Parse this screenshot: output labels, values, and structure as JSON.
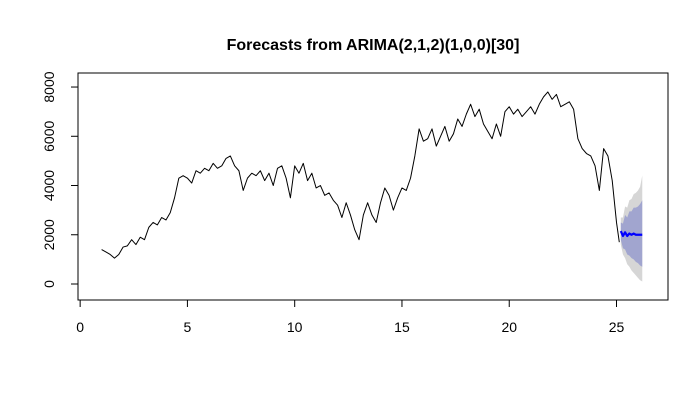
{
  "chart_data": {
    "type": "line",
    "title": "Forecasts from ARIMA(2,1,2)(1,0,0)[30]",
    "x": [
      1.0,
      1.2,
      1.4,
      1.6,
      1.8,
      2.0,
      2.2,
      2.4,
      2.6,
      2.8,
      3.0,
      3.2,
      3.4,
      3.6,
      3.8,
      4.0,
      4.2,
      4.4,
      4.6,
      4.8,
      5.0,
      5.2,
      5.4,
      5.6,
      5.8,
      6.0,
      6.2,
      6.4,
      6.6,
      6.8,
      7.0,
      7.2,
      7.4,
      7.6,
      7.8,
      8.0,
      8.2,
      8.4,
      8.6,
      8.8,
      9.0,
      9.2,
      9.4,
      9.6,
      9.8,
      10.0,
      10.2,
      10.4,
      10.6,
      10.8,
      11.0,
      11.2,
      11.4,
      11.6,
      11.8,
      12.0,
      12.2,
      12.4,
      12.6,
      12.8,
      13.0,
      13.2,
      13.4,
      13.6,
      13.8,
      14.0,
      14.2,
      14.4,
      14.6,
      14.8,
      15.0,
      15.2,
      15.4,
      15.6,
      15.8,
      16.0,
      16.2,
      16.4,
      16.6,
      16.8,
      17.0,
      17.2,
      17.4,
      17.6,
      17.8,
      18.0,
      18.2,
      18.4,
      18.6,
      18.8,
      19.0,
      19.2,
      19.4,
      19.6,
      19.8,
      20.0,
      20.2,
      20.4,
      20.6,
      20.8,
      21.0,
      21.2,
      21.4,
      21.6,
      21.8,
      22.0,
      22.2,
      22.4,
      22.6,
      22.8,
      23.0,
      23.2,
      23.4,
      23.6,
      23.8,
      24.0,
      24.2,
      24.4,
      24.6,
      24.8,
      25.0,
      25.13
    ],
    "values": [
      1400,
      1300,
      1200,
      1050,
      1200,
      1500,
      1550,
      1800,
      1600,
      1900,
      1800,
      2300,
      2500,
      2400,
      2700,
      2600,
      2900,
      3500,
      4300,
      4400,
      4300,
      4100,
      4600,
      4500,
      4700,
      4600,
      4900,
      4700,
      4800,
      5100,
      5200,
      4800,
      4600,
      3800,
      4300,
      4500,
      4400,
      4600,
      4200,
      4500,
      4000,
      4700,
      4800,
      4300,
      3500,
      4800,
      4500,
      4900,
      4200,
      4500,
      3900,
      4000,
      3600,
      3700,
      3400,
      3200,
      2700,
      3300,
      2800,
      2200,
      1800,
      2800,
      3300,
      2800,
      2500,
      3300,
      3900,
      3600,
      3000,
      3500,
      3900,
      3800,
      4300,
      5200,
      6300,
      5800,
      5900,
      6300,
      5600,
      6000,
      6400,
      5800,
      6100,
      6700,
      6400,
      6900,
      7300,
      6800,
      7100,
      6500,
      6200,
      5900,
      6500,
      6000,
      7000,
      7200,
      6900,
      7100,
      6800,
      7000,
      7200,
      6900,
      7300,
      7600,
      7800,
      7500,
      7700,
      7200,
      7300,
      7400,
      7100,
      5900,
      5500,
      5300,
      5200,
      4800,
      3800,
      5500,
      5200,
      4200,
      2500,
      1700
    ],
    "color": "#000000",
    "forecast": {
      "x": [
        25.2,
        25.3,
        25.4,
        25.5,
        25.6,
        25.7,
        25.8,
        25.9,
        26.0,
        26.1,
        26.2
      ],
      "mean": [
        2150,
        1950,
        2100,
        1950,
        2050,
        2000,
        2050,
        2000,
        2000,
        2000,
        2000
      ],
      "lo80": [
        1800,
        1450,
        1400,
        1200,
        1150,
        1050,
        1000,
        900,
        850,
        750,
        700
      ],
      "hi80": [
        2500,
        2450,
        2800,
        2700,
        2950,
        2950,
        3100,
        3100,
        3150,
        3250,
        3400
      ],
      "lo95": [
        1600,
        1200,
        1050,
        800,
        700,
        550,
        450,
        350,
        250,
        150,
        100
      ],
      "hi95": [
        2700,
        2700,
        3150,
        3100,
        3400,
        3450,
        3650,
        3700,
        3800,
        3950,
        4400
      ],
      "color": "#0000ff",
      "band80_color": "#a1a5cf",
      "band95_color": "#d6d6d6"
    },
    "xlim": [
      -0.1,
      27.4
    ],
    "ylim": [
      -650,
      8570
    ],
    "xticks": [
      0,
      5,
      10,
      15,
      20,
      25
    ],
    "yticks": [
      0,
      2000,
      4000,
      6000,
      8000
    ]
  }
}
